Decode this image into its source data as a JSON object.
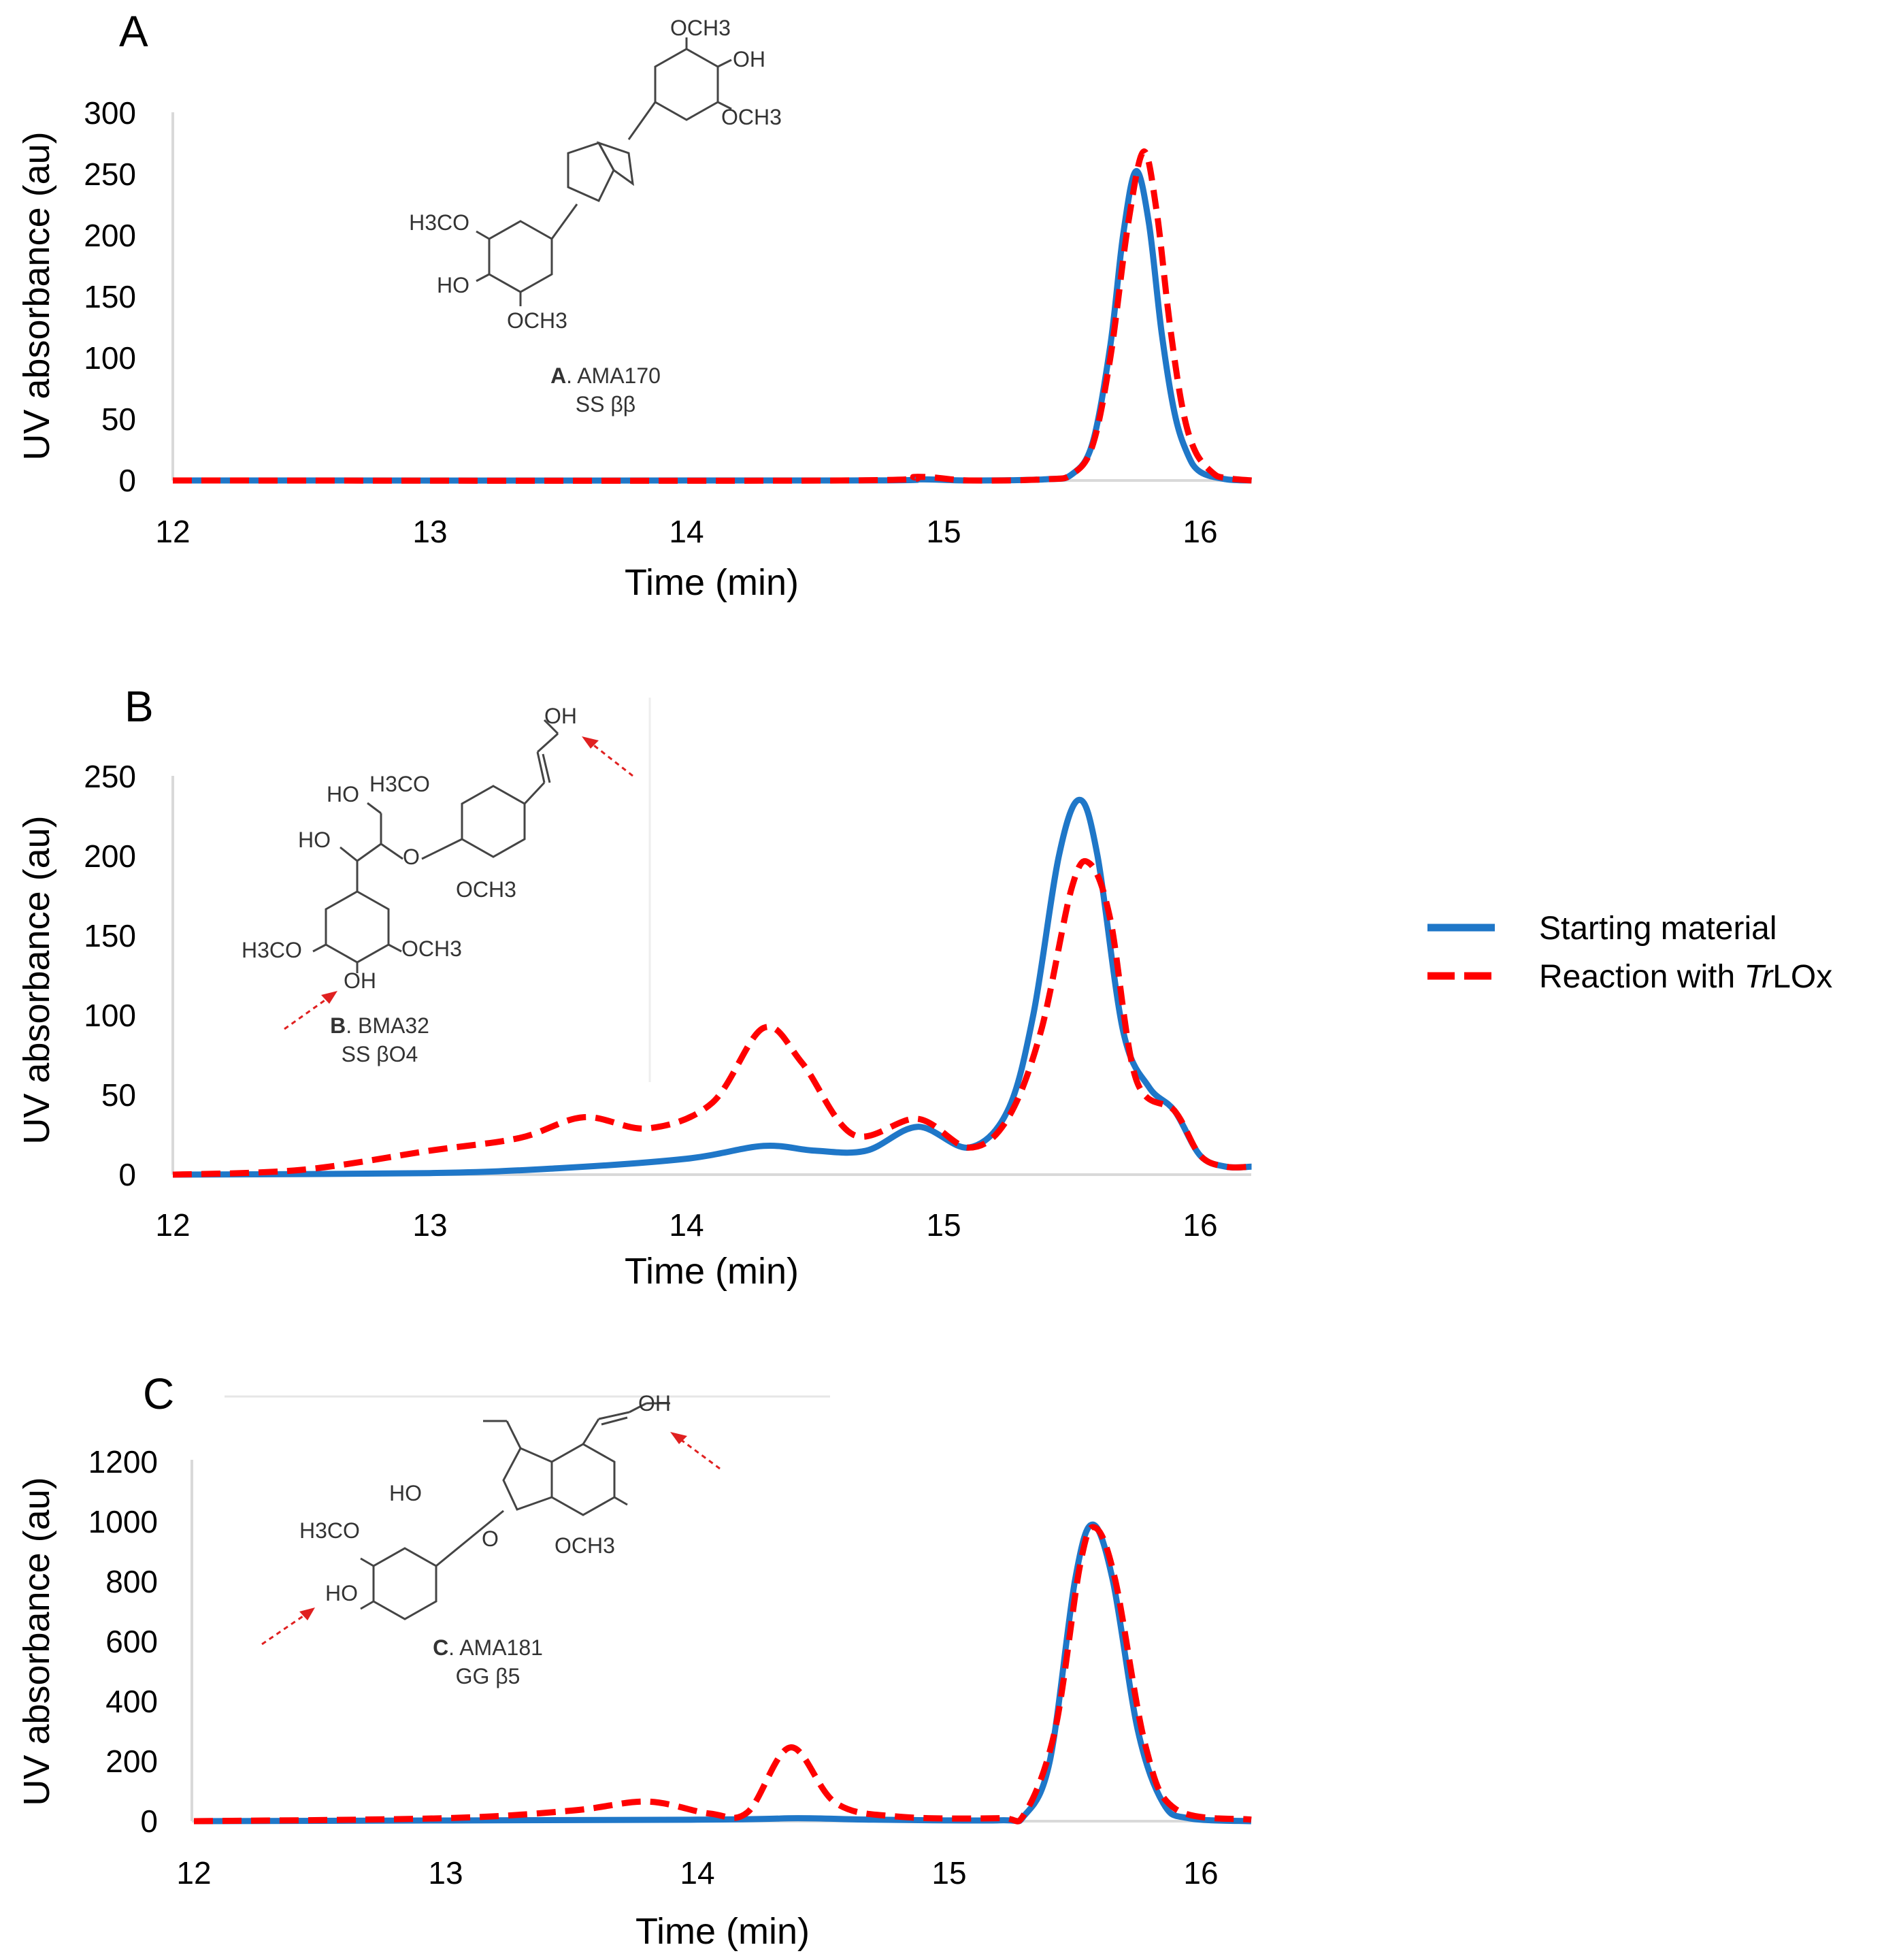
{
  "legend": {
    "starting_material": "Starting material",
    "reaction_prefix": "Reaction with ",
    "reaction_italic": "Tr",
    "reaction_suffix": "LOx"
  },
  "colors": {
    "starting_material": "#1f77c8",
    "reaction": "#ff0000"
  },
  "molecules": {
    "A": {
      "name_bold": "A",
      "name_rest": ". AMA170",
      "type": "SS ββ",
      "labels": [
        "OCH3",
        "OH",
        "OCH3",
        "H3CO",
        "HO",
        "OCH3"
      ]
    },
    "B": {
      "name_bold": "B",
      "name_rest": ". BMA32",
      "type": "SS βO4",
      "labels": [
        "OH",
        "HO",
        "H3CO",
        "HO",
        "O",
        "OCH3",
        "H3CO",
        "OCH3",
        "OH"
      ]
    },
    "C": {
      "name_bold": "C",
      "name_rest": ". AMA181",
      "type": "GG β5",
      "labels": [
        "OH",
        "HO",
        "H3CO",
        "O",
        "OCH3",
        "HO"
      ]
    }
  },
  "chart_data": [
    {
      "panel": "A",
      "type": "line",
      "xlabel": "Time (min)",
      "ylabel": "UV absorbance (au)",
      "xlim": [
        12,
        16.2
      ],
      "ylim": [
        0,
        300
      ],
      "xticks": [
        "12",
        "13",
        "14",
        "15",
        "16"
      ],
      "yticks": [
        "0",
        "50",
        "100",
        "150",
        "200",
        "250",
        "300"
      ],
      "series": [
        {
          "name": "Starting material",
          "style": "solid",
          "points": [
            [
              12,
              0
            ],
            [
              14.6,
              0
            ],
            [
              14.9,
              1
            ],
            [
              15.1,
              0
            ],
            [
              15.4,
              1
            ],
            [
              15.5,
              5
            ],
            [
              15.58,
              30
            ],
            [
              15.65,
              110
            ],
            [
              15.7,
              200
            ],
            [
              15.75,
              252
            ],
            [
              15.8,
              210
            ],
            [
              15.85,
              120
            ],
            [
              15.9,
              55
            ],
            [
              15.95,
              22
            ],
            [
              16.0,
              7
            ],
            [
              16.1,
              1
            ],
            [
              16.2,
              0
            ]
          ]
        },
        {
          "name": "Reaction with TrLOx",
          "style": "dashed",
          "points": [
            [
              12,
              0
            ],
            [
              14.6,
              0
            ],
            [
              14.9,
              3
            ],
            [
              15.1,
              0
            ],
            [
              15.4,
              1
            ],
            [
              15.5,
              5
            ],
            [
              15.58,
              28
            ],
            [
              15.65,
              100
            ],
            [
              15.72,
              210
            ],
            [
              15.78,
              268
            ],
            [
              15.83,
              220
            ],
            [
              15.88,
              130
            ],
            [
              15.93,
              60
            ],
            [
              15.98,
              24
            ],
            [
              16.05,
              6
            ],
            [
              16.1,
              2
            ],
            [
              16.2,
              0
            ]
          ]
        }
      ]
    },
    {
      "panel": "B",
      "type": "line",
      "xlabel": "Time (min)",
      "ylabel": "UV absorbance (au)",
      "xlim": [
        12,
        16.2
      ],
      "ylim": [
        0,
        250
      ],
      "xticks": [
        "12",
        "13",
        "14",
        "15",
        "16"
      ],
      "yticks": [
        "0",
        "50",
        "100",
        "150",
        "200",
        "250"
      ],
      "series": [
        {
          "name": "Starting material",
          "style": "solid",
          "points": [
            [
              12,
              0
            ],
            [
              13,
              1
            ],
            [
              13.5,
              4
            ],
            [
              14,
              10
            ],
            [
              14.3,
              18
            ],
            [
              14.5,
              15
            ],
            [
              14.7,
              15
            ],
            [
              14.9,
              30
            ],
            [
              15.1,
              17
            ],
            [
              15.25,
              40
            ],
            [
              15.35,
              100
            ],
            [
              15.45,
              200
            ],
            [
              15.53,
              235
            ],
            [
              15.6,
              200
            ],
            [
              15.7,
              90
            ],
            [
              15.8,
              55
            ],
            [
              15.9,
              40
            ],
            [
              16,
              12
            ],
            [
              16.1,
              5
            ],
            [
              16.2,
              5
            ]
          ]
        },
        {
          "name": "Reaction with TrLOx",
          "style": "dashed",
          "points": [
            [
              12,
              0
            ],
            [
              12.5,
              3
            ],
            [
              13,
              15
            ],
            [
              13.35,
              23
            ],
            [
              13.6,
              36
            ],
            [
              13.85,
              29
            ],
            [
              14.1,
              45
            ],
            [
              14.3,
              92
            ],
            [
              14.45,
              70
            ],
            [
              14.65,
              25
            ],
            [
              14.9,
              35
            ],
            [
              15.1,
              17
            ],
            [
              15.25,
              35
            ],
            [
              15.38,
              90
            ],
            [
              15.5,
              180
            ],
            [
              15.57,
              195
            ],
            [
              15.65,
              160
            ],
            [
              15.75,
              60
            ],
            [
              15.9,
              40
            ],
            [
              16,
              12
            ],
            [
              16.1,
              5
            ],
            [
              16.2,
              5
            ]
          ]
        }
      ]
    },
    {
      "panel": "C",
      "type": "line",
      "xlabel": "Time (min)",
      "ylabel": "UV absorbance (au)",
      "xlim": [
        12,
        16.2
      ],
      "ylim": [
        0,
        1200
      ],
      "xticks": [
        "12",
        "13",
        "14",
        "15",
        "16"
      ],
      "yticks": [
        "0",
        "200",
        "400",
        "600",
        "800",
        "1000",
        "1200"
      ],
      "series": [
        {
          "name": "Starting material",
          "style": "solid",
          "points": [
            [
              12,
              0
            ],
            [
              14,
              5
            ],
            [
              14.4,
              10
            ],
            [
              14.7,
              5
            ],
            [
              15.2,
              3
            ],
            [
              15.3,
              20
            ],
            [
              15.4,
              200
            ],
            [
              15.5,
              800
            ],
            [
              15.57,
              985
            ],
            [
              15.65,
              800
            ],
            [
              15.75,
              300
            ],
            [
              15.85,
              60
            ],
            [
              15.95,
              10
            ],
            [
              16.2,
              0
            ]
          ]
        },
        {
          "name": "Reaction with TrLOx",
          "style": "dashed",
          "points": [
            [
              12,
              0
            ],
            [
              13,
              10
            ],
            [
              13.5,
              35
            ],
            [
              13.8,
              65
            ],
            [
              14.05,
              25
            ],
            [
              14.2,
              30
            ],
            [
              14.37,
              245
            ],
            [
              14.55,
              60
            ],
            [
              14.8,
              15
            ],
            [
              15.2,
              10
            ],
            [
              15.3,
              25
            ],
            [
              15.42,
              300
            ],
            [
              15.52,
              850
            ],
            [
              15.58,
              975
            ],
            [
              15.66,
              800
            ],
            [
              15.78,
              250
            ],
            [
              15.9,
              40
            ],
            [
              16.2,
              5
            ]
          ]
        }
      ]
    }
  ]
}
